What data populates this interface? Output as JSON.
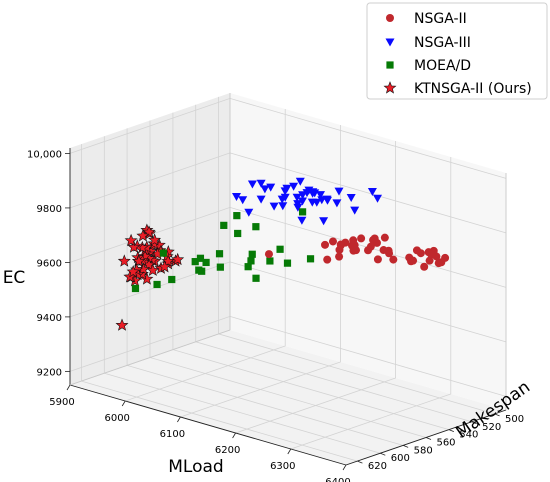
{
  "chart_data": {
    "type": "scatter",
    "projection": "3d",
    "xlabel": "MLoad",
    "ylabel": "Makespan",
    "zlabel": "EC",
    "xlim": [
      5900,
      6400
    ],
    "ylim": [
      490,
      630
    ],
    "zlim": [
      9150,
      10020
    ],
    "xticks": [
      "5900",
      "6000",
      "6100",
      "6200",
      "6300",
      "6400"
    ],
    "yticks": [
      "500",
      "520",
      "540",
      "560",
      "580",
      "600",
      "620"
    ],
    "zticks": [
      "9200",
      "9400",
      "9600",
      "9800",
      "10,000"
    ],
    "grid": true,
    "legend_position": "top-right",
    "colors": {
      "NSGA-II": "#c0282d",
      "NSGA-III": "#0a0aff",
      "MOEA/D": "#067a06",
      "KTNSGA-II (Ours)": "#ea1d26"
    },
    "markers": {
      "NSGA-II": "circle",
      "NSGA-III": "triangle-down",
      "MOEA/D": "square",
      "KTNSGA-II (Ours)": "star"
    },
    "series": [
      {
        "name": "NSGA-II",
        "points": [
          [
            6329,
            509,
            9694
          ],
          [
            6325,
            517,
            9729
          ],
          [
            6300,
            523,
            9687
          ],
          [
            6258,
            520,
            9662
          ],
          [
            6257,
            533,
            9681
          ],
          [
            6239,
            539,
            9756
          ],
          [
            6273,
            531,
            9710
          ],
          [
            6219,
            535,
            9714
          ],
          [
            6186,
            545,
            9710
          ],
          [
            6335,
            524,
            9732
          ],
          [
            6217,
            553,
            9752
          ],
          [
            6276,
            545,
            9786
          ],
          [
            6194,
            524,
            9663
          ],
          [
            6264,
            509,
            9657
          ],
          [
            6287,
            507,
            9634
          ],
          [
            6208,
            532,
            9701
          ],
          [
            6235,
            513,
            9671
          ],
          [
            6231,
            553,
            9749
          ],
          [
            6288,
            519,
            9672
          ],
          [
            6276,
            543,
            9767
          ],
          [
            6282,
            539,
            9784
          ],
          [
            6316,
            506,
            9666
          ],
          [
            6307,
            523,
            9729
          ],
          [
            6232,
            516,
            9676
          ],
          [
            6206,
            542,
            9699
          ],
          [
            6197,
            538,
            9663
          ],
          [
            6326,
            522,
            9732
          ],
          [
            6208,
            518,
            9664
          ],
          [
            6269,
            545,
            9752
          ],
          [
            6238,
            543,
            9718
          ],
          [
            6271,
            544,
            9776
          ],
          [
            6227,
            547,
            9745
          ],
          [
            6190,
            545,
            9658
          ],
          [
            6303,
            510,
            9670
          ],
          [
            6219,
            547,
            9731
          ],
          [
            6235,
            544,
            9754
          ],
          [
            6159,
            581,
            9712
          ],
          [
            6305,
            503,
            9652
          ],
          [
            6312,
            522,
            9720
          ],
          [
            6307,
            506,
            9682
          ]
        ]
      },
      {
        "name": "NSGA-III",
        "points": [
          [
            6190,
            521,
            9805
          ],
          [
            6219,
            515,
            9857
          ],
          [
            6199,
            539,
            9906
          ],
          [
            6124,
            552,
            9827
          ],
          [
            6156,
            558,
            9926
          ],
          [
            6093,
            556,
            9839
          ],
          [
            6146,
            559,
            9914
          ],
          [
            6164,
            556,
            9946
          ],
          [
            6219,
            538,
            9893
          ],
          [
            6178,
            552,
            9905
          ],
          [
            6153,
            564,
            9916
          ],
          [
            6182,
            547,
            9895
          ],
          [
            6129,
            562,
            9843
          ],
          [
            6094,
            578,
            9881
          ],
          [
            6161,
            547,
            9899
          ],
          [
            6174,
            542,
            9864
          ],
          [
            6165,
            546,
            9856
          ],
          [
            6127,
            580,
            9949
          ],
          [
            6140,
            543,
            9770
          ],
          [
            6171,
            539,
            9781
          ],
          [
            6152,
            566,
            9888
          ],
          [
            6151,
            552,
            9851
          ],
          [
            6174,
            555,
            9909
          ],
          [
            6159,
            541,
            9879
          ],
          [
            6170,
            548,
            9900
          ],
          [
            6131,
            566,
            9920
          ],
          [
            6167,
            543,
            9852
          ],
          [
            6218,
            519,
            9887
          ],
          [
            6147,
            561,
            9885
          ],
          [
            6133,
            572,
            9923
          ],
          [
            6154,
            554,
            9879
          ],
          [
            6177,
            539,
            9864
          ],
          [
            6193,
            538,
            9858
          ],
          [
            6110,
            575,
            9828
          ],
          [
            6101,
            576,
            9870
          ],
          [
            6162,
            553,
            9891
          ],
          [
            6143,
            548,
            9827
          ],
          [
            6178,
            539,
            9860
          ],
          [
            6168,
            556,
            9876
          ],
          [
            6124,
            571,
            9937
          ]
        ]
      },
      {
        "name": "MOEA/D",
        "points": [
          [
            6107,
            584,
            9827
          ],
          [
            6073,
            579,
            9764
          ],
          [
            6072,
            594,
            9649
          ],
          [
            6137,
            534,
            9614
          ],
          [
            6127,
            577,
            9788
          ],
          [
            6123,
            591,
            9781
          ],
          [
            6045,
            611,
            9595
          ],
          [
            6147,
            559,
            9640
          ],
          [
            6039,
            583,
            9629
          ],
          [
            6108,
            571,
            9667
          ],
          [
            6164,
            554,
            9831
          ],
          [
            6090,
            559,
            9551
          ],
          [
            6086,
            589,
            9682
          ],
          [
            6146,
            565,
            9699
          ],
          [
            6113,
            577,
            9633
          ],
          [
            6064,
            594,
            9612
          ],
          [
            6065,
            597,
            9621
          ],
          [
            6073,
            582,
            9615
          ],
          [
            6036,
            614,
            9691
          ],
          [
            6111,
            557,
            9624
          ],
          [
            6037,
            620,
            9585
          ],
          [
            6114,
            575,
            9652
          ],
          [
            6000,
            621,
            9550
          ],
          [
            6073,
            604,
            9667
          ]
        ]
      },
      {
        "name": "KTNSGA-II (Ours)",
        "points": [
          [
            5997,
            620,
            9575
          ],
          [
            6003,
            614,
            9683
          ],
          [
            6000,
            620,
            9617
          ],
          [
            6011,
            605,
            9673
          ],
          [
            6007,
            611,
            9675
          ],
          [
            6012,
            610,
            9641
          ],
          [
            5990,
            620,
            9585
          ],
          [
            5998,
            618,
            9596
          ],
          [
            6003,
            613,
            9633
          ],
          [
            6024,
            604,
            9630
          ],
          [
            6000,
            611,
            9570
          ],
          [
            6020,
            603,
            9653
          ],
          [
            6015,
            609,
            9668
          ],
          [
            6004,
            617,
            9599
          ],
          [
            6015,
            612,
            9710
          ],
          [
            6005,
            615,
            9662
          ],
          [
            6019,
            615,
            9619
          ],
          [
            6018,
            601,
            9666
          ],
          [
            5992,
            622,
            9589
          ],
          [
            6010,
            605,
            9692
          ],
          [
            5999,
            618,
            9645
          ],
          [
            6002,
            616,
            9647
          ],
          [
            5988,
            625,
            9649
          ],
          [
            5986,
            626,
            9414
          ],
          [
            5995,
            617,
            9697
          ],
          [
            6010,
            614,
            9632
          ],
          [
            5996,
            617,
            9655
          ],
          [
            6006,
            614,
            9695
          ],
          [
            6002,
            619,
            9648
          ],
          [
            6016,
            612,
            9724
          ],
          [
            6017,
            607,
            9675
          ],
          [
            6003,
            611,
            9664
          ],
          [
            6002,
            612,
            9752
          ],
          [
            6011,
            604,
            9606
          ],
          [
            6033,
            600,
            9645
          ],
          [
            6001,
            615,
            9735
          ],
          [
            6026,
            605,
            9642
          ],
          [
            6008,
            613,
            9750
          ],
          [
            6030,
            610,
            9631
          ],
          [
            5992,
            621,
            9721
          ],
          [
            6006,
            617,
            9618
          ],
          [
            6005,
            610,
            9685
          ],
          [
            6000,
            623,
            9614
          ],
          [
            6000,
            615,
            9608
          ],
          [
            6000,
            615,
            9691
          ],
          [
            6006,
            612,
            9650
          ],
          [
            6025,
            598,
            9632
          ],
          [
            6007,
            612,
            9743
          ],
          [
            5991,
            618,
            9692
          ],
          [
            6010,
            611,
            9644
          ]
        ]
      }
    ]
  }
}
